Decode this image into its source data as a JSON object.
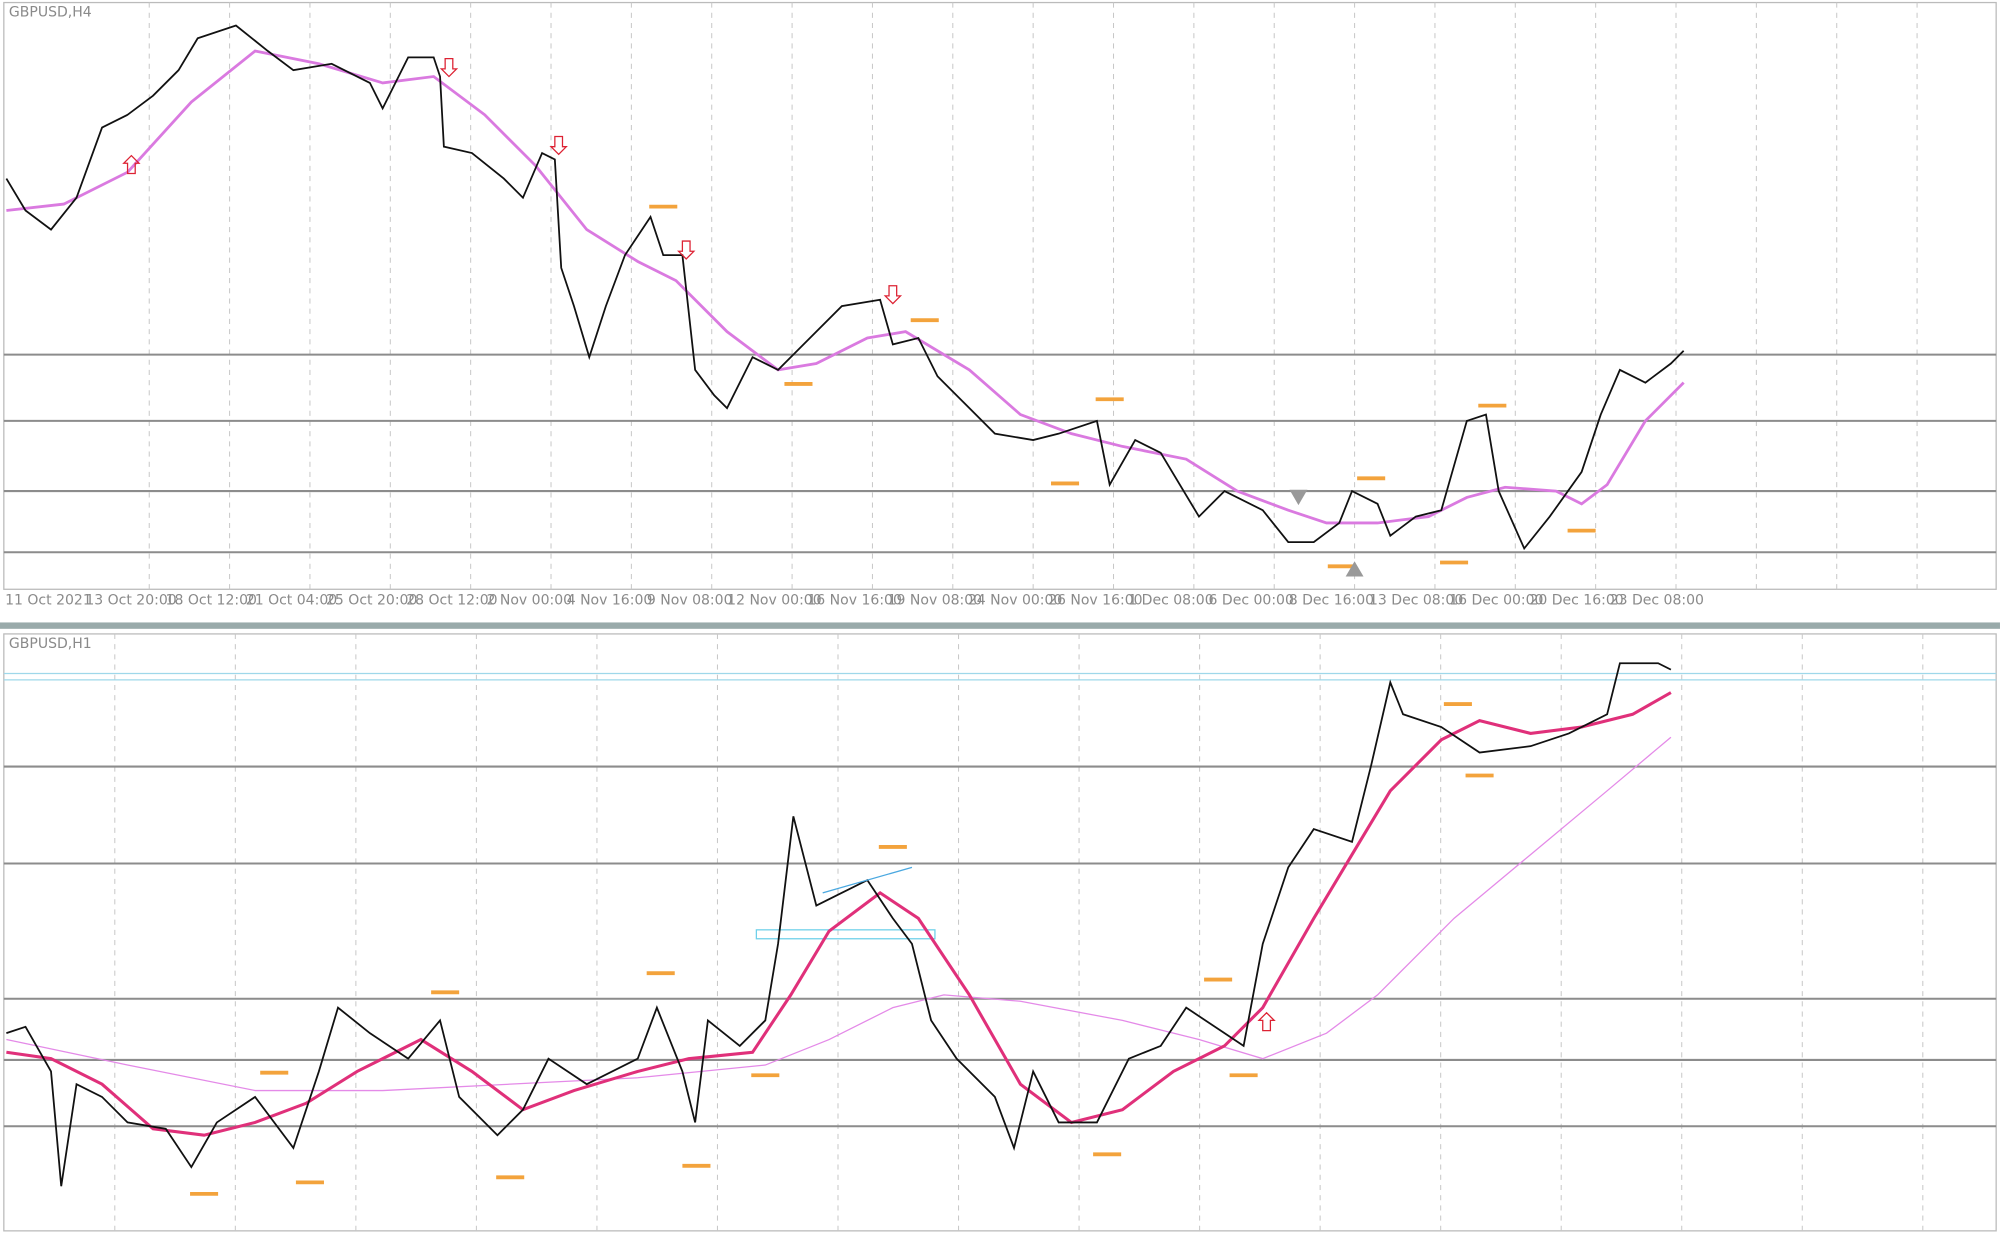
{
  "panels": [
    {
      "title": "GBPUSD,H4",
      "x_labels": [
        "11 Oct 2021",
        "13 Oct 20:00",
        "18 Oct 12:00",
        "21 Oct 04:00",
        "25 Oct 20:00",
        "28 Oct 12:00",
        "2 Nov 00:00",
        "4 Nov 16:00",
        "9 Nov 08:00",
        "12 Nov 00:00",
        "16 Nov 16:00",
        "19 Nov 08:00",
        "24 Nov 00:00",
        "26 Nov 16:00",
        "1 Dec 08:00",
        "6 Dec 00:00",
        "8 Dec 16:00",
        "13 Dec 08:00",
        "16 Dec 00:00",
        "20 Dec 16:00",
        "23 Dec 08:00"
      ]
    },
    {
      "title": "GBPUSD,H1"
    }
  ]
}
